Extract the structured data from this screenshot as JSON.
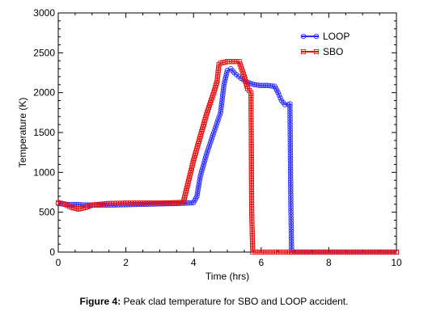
{
  "caption": {
    "label": "Figure 4:",
    "text": "Peak clad temperature for SBO and LOOP accident."
  },
  "chart_data": {
    "type": "line",
    "xlabel": "Time (hrs)",
    "ylabel": "Temperature (K)",
    "xlim": [
      0,
      10
    ],
    "ylim": [
      0,
      3000
    ],
    "xticks": [
      "0",
      "2",
      "4",
      "6",
      "8",
      "10"
    ],
    "yticks": [
      "0",
      "500",
      "1000",
      "1500",
      "2000",
      "2500",
      "3000"
    ],
    "grid": false,
    "legend": "top-right",
    "series": [
      {
        "name": "LOOP",
        "color": "#2a2aff",
        "marker": "circle",
        "x": [
          0,
          0.2,
          0.4,
          0.6,
          0.8,
          1.0,
          1.5,
          2.0,
          2.5,
          3.0,
          3.5,
          3.8,
          4.0,
          4.1,
          4.2,
          4.4,
          4.6,
          4.8,
          4.9,
          5.0,
          5.1,
          5.2,
          5.4,
          5.6,
          5.8,
          6.0,
          6.2,
          6.4,
          6.5,
          6.6,
          6.7,
          6.8,
          6.85,
          6.88,
          6.9,
          7.0,
          8.0,
          9.0,
          10.0
        ],
        "y": [
          610,
          600,
          595,
          595,
          590,
          590,
          590,
          595,
          600,
          605,
          610,
          615,
          620,
          700,
          950,
          1250,
          1500,
          1750,
          2100,
          2280,
          2300,
          2250,
          2180,
          2130,
          2100,
          2090,
          2090,
          2080,
          2000,
          1900,
          1850,
          1850,
          1860,
          500,
          0,
          0,
          0,
          0,
          0
        ]
      },
      {
        "name": "SBO",
        "color": "#e81010",
        "marker": "square",
        "x": [
          0,
          0.2,
          0.4,
          0.6,
          0.8,
          1.0,
          1.5,
          2.0,
          2.5,
          3.0,
          3.5,
          3.7,
          3.8,
          4.0,
          4.2,
          4.4,
          4.6,
          4.7,
          4.75,
          4.8,
          5.0,
          5.2,
          5.35,
          5.5,
          5.6,
          5.7,
          5.72,
          5.75,
          6.0,
          7.0,
          8.0,
          9.0,
          10.0
        ],
        "y": [
          620,
          600,
          560,
          540,
          560,
          590,
          610,
          615,
          615,
          615,
          620,
          625,
          800,
          1150,
          1450,
          1750,
          2000,
          2150,
          2350,
          2370,
          2390,
          2390,
          2390,
          2200,
          2050,
          2000,
          500,
          0,
          0,
          0,
          0,
          0,
          0
        ]
      }
    ]
  }
}
